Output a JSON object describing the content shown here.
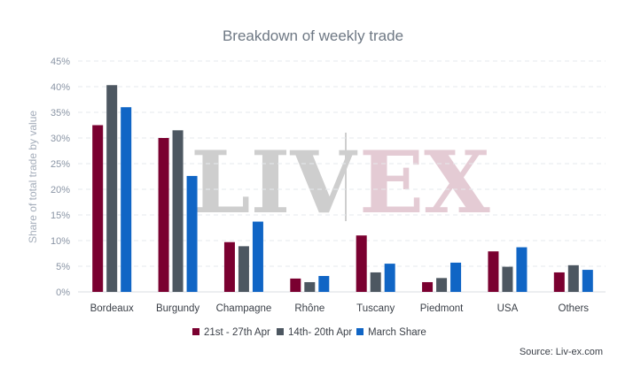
{
  "chart_data": {
    "type": "bar",
    "title": "Breakdown of weekly trade",
    "ylabel": "Share of total trade by value",
    "xlabel": "",
    "ylim": [
      0,
      45
    ],
    "yticks": [
      "0%",
      "5%",
      "10%",
      "15%",
      "20%",
      "25%",
      "30%",
      "35%",
      "40%",
      "45%"
    ],
    "categories": [
      "Bordeaux",
      "Burgundy",
      "Champagne",
      "Rhône",
      "Tuscany",
      "Piedmont",
      "USA",
      "Others"
    ],
    "series": [
      {
        "name": "21st - 27th Apr",
        "color": "#7a0030",
        "values": [
          32.5,
          30.0,
          9.7,
          2.6,
          11.0,
          1.9,
          7.9,
          3.8
        ]
      },
      {
        "name": "14th- 20th Apr",
        "color": "#4d5761",
        "values": [
          40.3,
          31.5,
          8.9,
          1.9,
          3.8,
          2.7,
          4.9,
          5.2
        ]
      },
      {
        "name": "March Share",
        "color": "#1065c5",
        "values": [
          36.0,
          22.6,
          13.7,
          3.1,
          5.5,
          5.7,
          8.7,
          4.3
        ]
      }
    ],
    "grid": true,
    "legend": "bottom",
    "watermark": {
      "left": "LIV",
      "right": "EX"
    }
  },
  "source": "Source: Liv-ex.com"
}
